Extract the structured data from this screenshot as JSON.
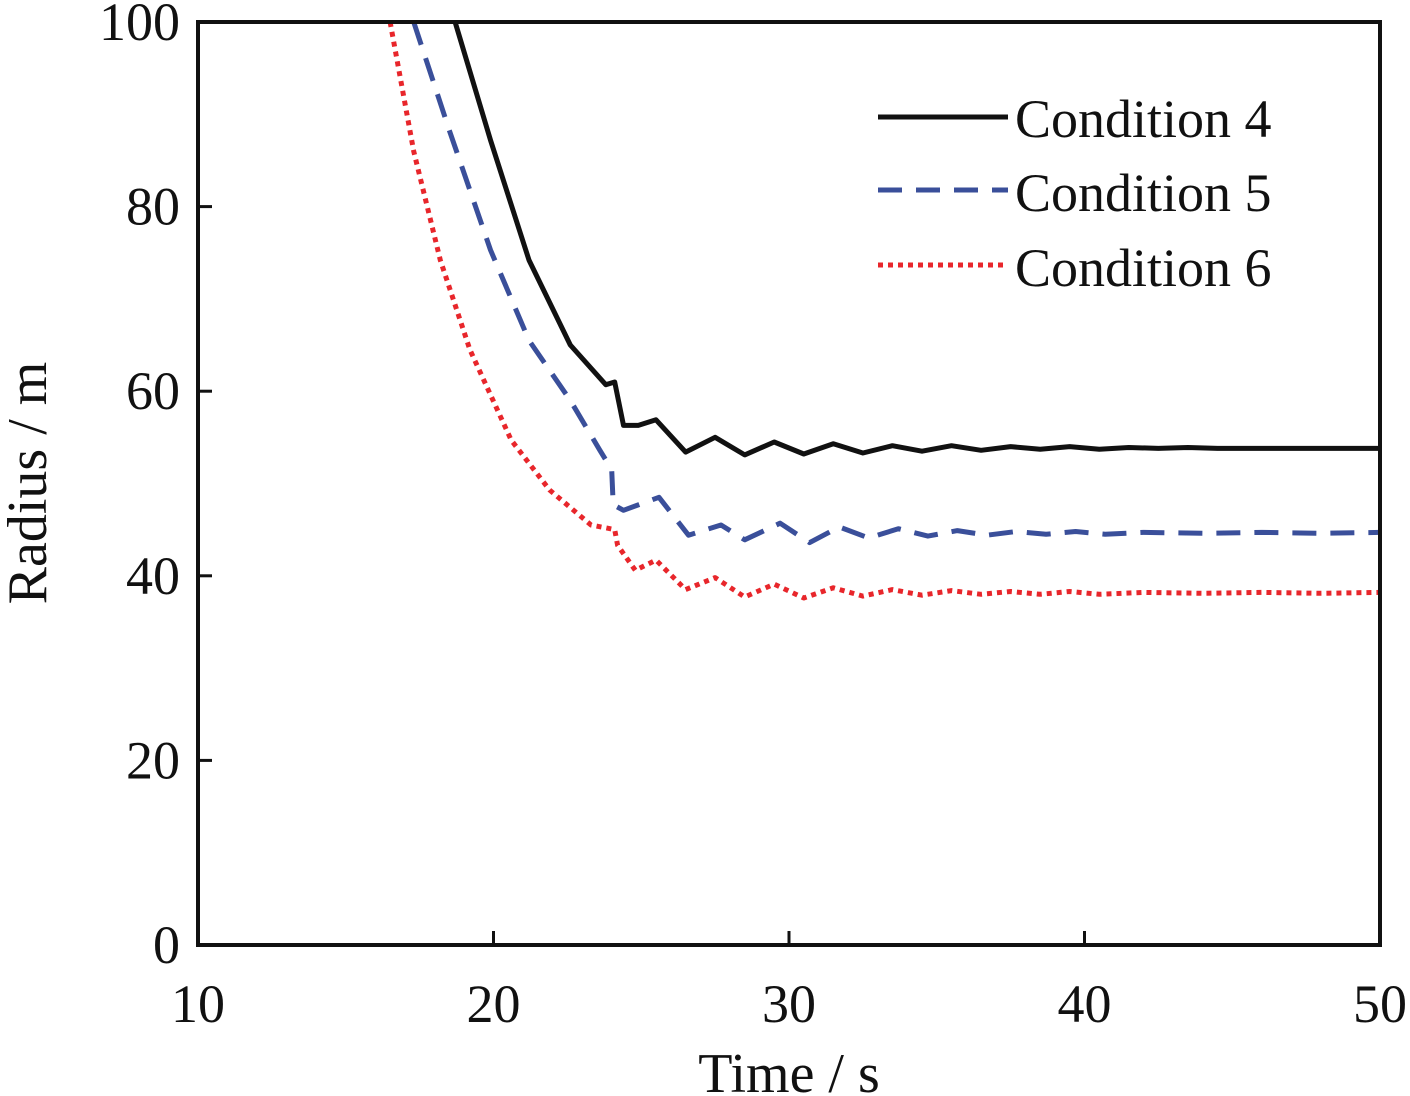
{
  "chart_data": {
    "type": "line",
    "title": "",
    "xlabel": "Time / s",
    "ylabel": "Radius / m",
    "xlim": [
      10,
      50
    ],
    "ylim": [
      0,
      100
    ],
    "xticks": [
      10,
      20,
      30,
      40,
      50
    ],
    "yticks": [
      0,
      20,
      40,
      60,
      80,
      100
    ],
    "grid": false,
    "legend_position": "top-right",
    "series": [
      {
        "name": "Condition 4",
        "color": "#111111",
        "style": "solid",
        "x": [
          18.7,
          19.9,
          21.2,
          22.6,
          23.8,
          24.1,
          24.4,
          24.9,
          25.5,
          26.5,
          27.5,
          28.5,
          29.5,
          30.5,
          31.5,
          32.5,
          33.5,
          34.5,
          35.5,
          36.5,
          37.5,
          38.5,
          39.5,
          40.5,
          41.5,
          42.5,
          43.5,
          44.5,
          46,
          48,
          50
        ],
        "y": [
          100,
          87.2,
          74.2,
          65,
          60.7,
          61,
          56.3,
          56.3,
          56.9,
          53.4,
          55,
          53.1,
          54.5,
          53.2,
          54.3,
          53.3,
          54.1,
          53.5,
          54.1,
          53.6,
          54,
          53.7,
          54,
          53.7,
          53.9,
          53.8,
          53.9,
          53.8,
          53.8,
          53.8,
          53.8
        ]
      },
      {
        "name": "Condition 5",
        "color": "#3a4f9a",
        "style": "dashed",
        "x": [
          17.3,
          18.5,
          19.9,
          21.2,
          22.6,
          23.6,
          24.0,
          24.05,
          24.4,
          25.6,
          26.6,
          27.7,
          28.5,
          29.7,
          30.7,
          31.7,
          32.7,
          33.7,
          34.7,
          35.7,
          36.7,
          37.7,
          38.7,
          39.7,
          40.7,
          42,
          44,
          46,
          48,
          50
        ],
        "y": [
          100,
          88.3,
          75.3,
          65.5,
          59,
          53.6,
          51.5,
          47.7,
          47.1,
          48.5,
          44.4,
          45.5,
          43.9,
          45.7,
          43.6,
          45.3,
          44.1,
          45.1,
          44.3,
          44.9,
          44.4,
          44.8,
          44.5,
          44.8,
          44.5,
          44.7,
          44.6,
          44.7,
          44.6,
          44.7
        ]
      },
      {
        "name": "Condition 6",
        "color": "#e8262b",
        "style": "dotted",
        "x": [
          16.5,
          17.3,
          18.2,
          19.2,
          20.6,
          21.9,
          23.3,
          24.1,
          24.2,
          24.8,
          25.5,
          26.5,
          27.5,
          28.5,
          29.5,
          30.5,
          31.5,
          32.5,
          33.5,
          34.5,
          35.5,
          36.5,
          37.5,
          38.5,
          39.5,
          40.5,
          42,
          44,
          46,
          48,
          50
        ],
        "y": [
          100,
          86,
          74.2,
          64.5,
          54.7,
          49.3,
          45.5,
          45,
          43.3,
          40.6,
          41.7,
          38.5,
          39.8,
          37.7,
          39.1,
          37.6,
          38.7,
          37.8,
          38.5,
          37.9,
          38.4,
          38,
          38.3,
          38,
          38.3,
          38,
          38.2,
          38.1,
          38.2,
          38.1,
          38.2
        ]
      }
    ]
  }
}
